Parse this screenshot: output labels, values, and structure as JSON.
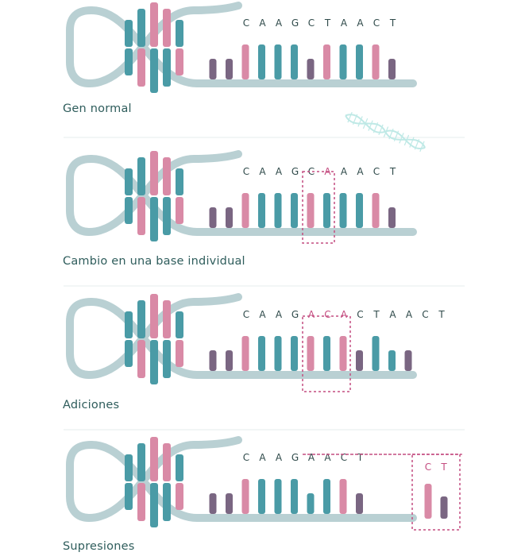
{
  "colors": {
    "backbone": "#b9d0d3",
    "teal": "#4a9ba6",
    "pink": "#d98aa6",
    "purple": "#7a6682",
    "letter": "#2f4a4a",
    "highlight": "#c44d80",
    "divider": "#e6ecec",
    "mini_helix": "#bfe9e6"
  },
  "sections": [
    {
      "caption": "Gen normal",
      "letters": [
        "C",
        "A",
        "A",
        "G",
        "C",
        "T",
        "A",
        "A",
        "C",
        "T"
      ],
      "bases": [
        "purple",
        "purple",
        "pink",
        "teal",
        "teal",
        "teal",
        "purple",
        "pink",
        "teal",
        "teal",
        "pink",
        "purple"
      ],
      "highlight_letters": [],
      "box": "none"
    },
    {
      "caption": "Cambio en una base individual",
      "letters": [
        "C",
        "A",
        "A",
        "G",
        "C",
        "A",
        "A",
        "A",
        "C",
        "T"
      ],
      "bases": [
        "purple",
        "purple",
        "pink",
        "teal",
        "teal",
        "teal",
        "pink",
        "teal",
        "teal",
        "teal",
        "pink",
        "purple"
      ],
      "highlight_letters": [
        5
      ],
      "box": "single-base"
    },
    {
      "caption": "Adiciones",
      "letters": [
        "C",
        "A",
        "A",
        "G",
        "A",
        "C",
        "A",
        "C",
        "T",
        "A",
        "A",
        "C",
        "T"
      ],
      "bases": [
        "purple",
        "purple",
        "pink",
        "teal",
        "teal",
        "teal",
        "pink",
        "teal",
        "pink",
        "purple",
        "teal",
        "teal",
        "purple"
      ],
      "highlight_letters": [
        4,
        5,
        6
      ],
      "box": "inserted-bases"
    },
    {
      "caption": "Supresiones",
      "letters": [
        "C",
        "A",
        "A",
        "G",
        "A",
        "A",
        "C",
        "T"
      ],
      "bases": [
        "purple",
        "purple",
        "pink",
        "teal",
        "teal",
        "teal",
        "teal",
        "teal",
        "pink",
        "purple"
      ],
      "highlight_letters": [],
      "box": "deleted-bases",
      "deleted_letters": [
        "C",
        "T"
      ],
      "deleted_bases": [
        "pink",
        "purple"
      ]
    }
  ]
}
